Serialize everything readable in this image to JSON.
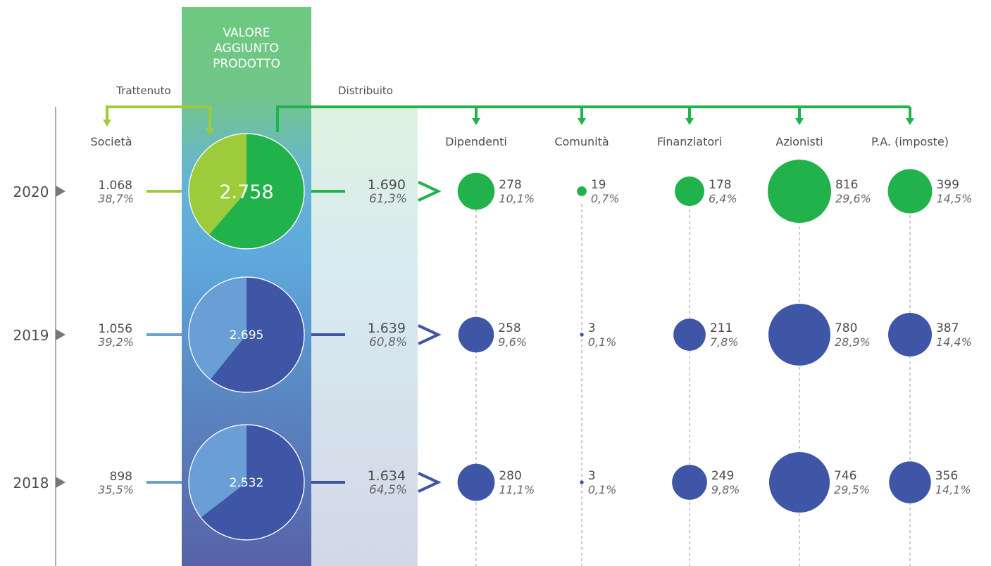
{
  "colors": {
    "green": "#22b24c",
    "light_green": "#9ccb3b",
    "blue": "#3f56a6",
    "light_blue": "#6a9fd6",
    "text": "#4d4d4d",
    "gray_text": "#666666"
  },
  "header": {
    "title_lines": [
      "VALORE",
      "AGGIUNTO",
      "PRODOTTO"
    ],
    "retained_label": "Trattenuto",
    "distributed_label": "Distribuito",
    "company_label": "Società"
  },
  "chart_data": {
    "type": "bubble",
    "categories": [
      "Dipendenti",
      "Comunità",
      "Finanziatori",
      "Azionisti",
      "P.A. (imposte)"
    ],
    "years": [
      {
        "year": "2020",
        "total": "2.758",
        "total_value": 2758,
        "retained": {
          "value": "1.068",
          "pct": "38,7%"
        },
        "distributed": {
          "value": "1.690",
          "pct": "61,3%"
        },
        "recipients": [
          {
            "value": "278",
            "pct": "10,1%"
          },
          {
            "value": "19",
            "pct": "0,7%"
          },
          {
            "value": "178",
            "pct": "6,4%"
          },
          {
            "value": "816",
            "pct": "29,6%"
          },
          {
            "value": "399",
            "pct": "14,5%"
          }
        ]
      },
      {
        "year": "2019",
        "total": "2.695",
        "total_value": 2695,
        "retained": {
          "value": "1.056",
          "pct": "39,2%"
        },
        "distributed": {
          "value": "1.639",
          "pct": "60,8%"
        },
        "recipients": [
          {
            "value": "258",
            "pct": "9,6%"
          },
          {
            "value": "3",
            "pct": "0,1%"
          },
          {
            "value": "211",
            "pct": "7,8%"
          },
          {
            "value": "780",
            "pct": "28,9%"
          },
          {
            "value": "387",
            "pct": "14,4%"
          }
        ]
      },
      {
        "year": "2018",
        "total": "2.532",
        "total_value": 2532,
        "retained": {
          "value": "898",
          "pct": "35,5%"
        },
        "distributed": {
          "value": "1.634",
          "pct": "64,5%"
        },
        "recipients": [
          {
            "value": "280",
            "pct": "11,1%"
          },
          {
            "value": "3",
            "pct": "0,1%"
          },
          {
            "value": "249",
            "pct": "9,8%"
          },
          {
            "value": "746",
            "pct": "29,5%"
          },
          {
            "value": "356",
            "pct": "14,1%"
          }
        ]
      }
    ]
  }
}
